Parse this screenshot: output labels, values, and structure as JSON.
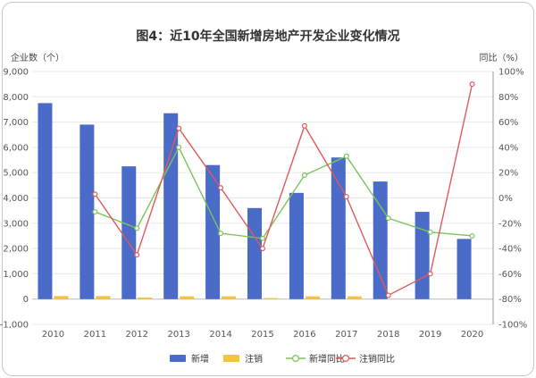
{
  "chart_data": {
    "type": "bar+line",
    "title": "图4：近10年全国新增房地产开发企业变化情况",
    "y_left_label": "企业数（个）",
    "y_right_label": "同比（%）",
    "categories": [
      "2010",
      "2011",
      "2012",
      "2013",
      "2014",
      "2015",
      "2016",
      "2017",
      "2018",
      "2019",
      "2020"
    ],
    "y_left": {
      "min": -1000,
      "max": 9000,
      "ticks": [
        "-1,000",
        "0",
        "1,000",
        "2,000",
        "3,000",
        "4,000",
        "5,000",
        "6,000",
        "7,000",
        "8,000",
        "9,000"
      ]
    },
    "y_right": {
      "min": -100,
      "max": 100,
      "ticks": [
        "-100%",
        "-80%",
        "-60%",
        "-40%",
        "-20%",
        "0%",
        "20%",
        "40%",
        "60%",
        "80%",
        "100%"
      ]
    },
    "series": [
      {
        "name": "新增",
        "kind": "bar",
        "axis": "left",
        "color": "#4a6cc8",
        "values": [
          7750,
          6900,
          5250,
          7350,
          5300,
          3600,
          4200,
          5600,
          4650,
          3450,
          2380
        ]
      },
      {
        "name": "注销",
        "kind": "bar",
        "axis": "left",
        "color": "#f5c242",
        "values": [
          120,
          120,
          60,
          110,
          110,
          40,
          110,
          110,
          null,
          null,
          null
        ]
      },
      {
        "name": "新增同比",
        "kind": "line",
        "axis": "right",
        "color": "#7cc35a",
        "values": [
          null,
          -11,
          -24,
          40,
          -28,
          -32,
          18,
          33,
          -16,
          -27,
          -30
        ]
      },
      {
        "name": "注销同比",
        "kind": "line",
        "axis": "right",
        "color": "#e05a5a",
        "values": [
          null,
          3,
          -45,
          55,
          8,
          -40,
          57,
          1,
          -77,
          -60,
          90
        ]
      }
    ]
  }
}
